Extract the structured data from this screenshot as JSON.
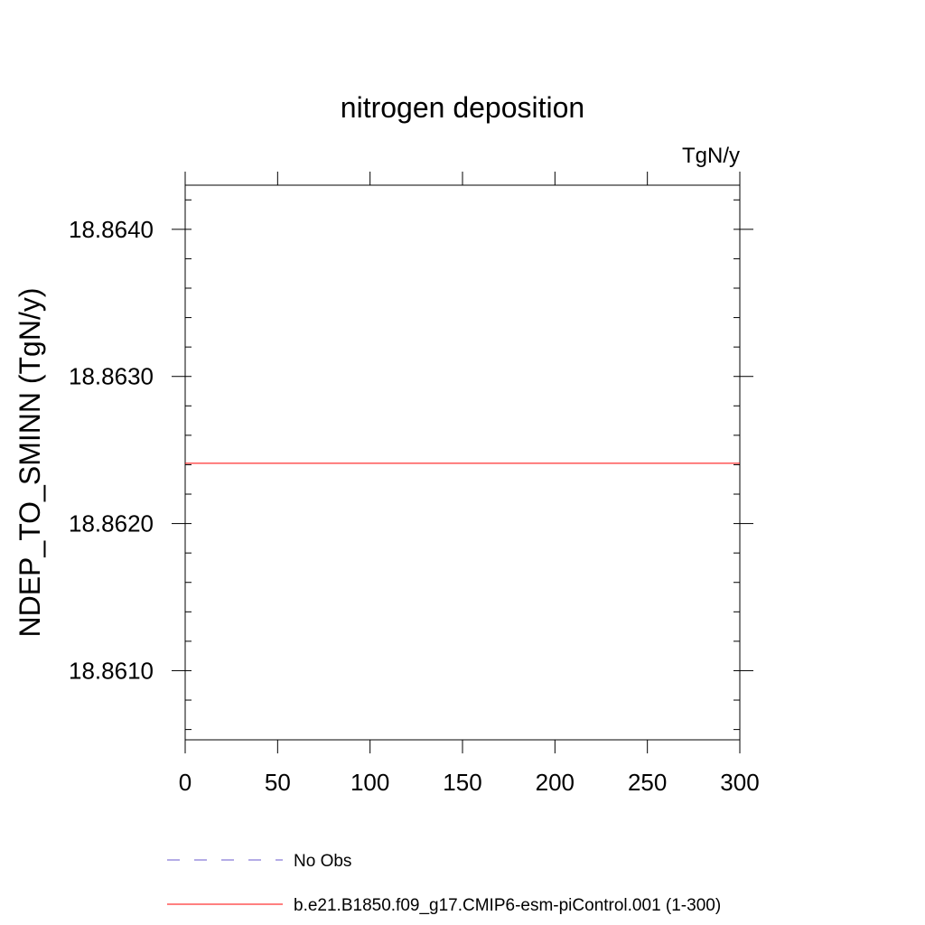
{
  "chart_data": {
    "type": "line",
    "title": "nitrogen deposition",
    "units_label": "TgN/y",
    "ylabel": "NDEP_TO_SMINN  (TgN/y)",
    "xlabel": "",
    "xlim": [
      0,
      300
    ],
    "ylim": [
      18.86053,
      18.8643
    ],
    "x_ticks": [
      0,
      50,
      100,
      150,
      200,
      250,
      300
    ],
    "y_ticks": [
      18.861,
      18.862,
      18.863,
      18.864
    ],
    "y_tick_labels": [
      "18.8610",
      "18.8620",
      "18.8630",
      "18.8640"
    ],
    "x_minor_step": 50,
    "y_minor_step": 0.0002,
    "grid": false,
    "legend_position": "bottom-left",
    "series": [
      {
        "name": "No Obs",
        "color": "#6a5acd",
        "dash": "dashed",
        "x": [],
        "y": []
      },
      {
        "name": "b.e21.B1850.f09_g17.CMIP6-esm-piControl.001 (1-300)",
        "color": "#ff0000",
        "dash": "solid",
        "x": [
          0,
          300
        ],
        "y": [
          18.86241,
          18.86241
        ]
      }
    ]
  }
}
